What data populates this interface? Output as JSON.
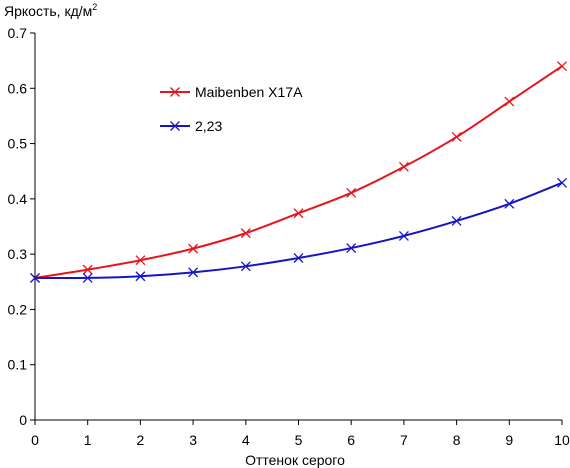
{
  "chart_data": {
    "type": "line",
    "ylabel": "Яркость, кд/м",
    "ylabel_superscript": "2",
    "xlabel": "Оттенок серого",
    "x": [
      0,
      1,
      2,
      3,
      4,
      5,
      6,
      7,
      8,
      9,
      10
    ],
    "xlim": [
      0,
      10
    ],
    "ylim": [
      0,
      0.7
    ],
    "x_ticks": [
      "0",
      "1",
      "2",
      "3",
      "4",
      "5",
      "6",
      "7",
      "8",
      "9",
      "10"
    ],
    "y_ticks": [
      "0",
      "0.1",
      "0.2",
      "0.3",
      "0.4",
      "0.5",
      "0.6",
      "0.7"
    ],
    "grid": false,
    "legend_position": "upper-left",
    "series": [
      {
        "name": "Maibenben X17A",
        "color": "#e8141b",
        "marker": "x",
        "values": [
          0.257,
          0.272,
          0.289,
          0.31,
          0.338,
          0.374,
          0.411,
          0.458,
          0.512,
          0.576,
          0.64
        ]
      },
      {
        "name": "2,23",
        "color": "#1515c8",
        "marker": "x",
        "values": [
          0.257,
          0.257,
          0.26,
          0.267,
          0.278,
          0.293,
          0.311,
          0.333,
          0.36,
          0.391,
          0.429
        ]
      }
    ]
  }
}
